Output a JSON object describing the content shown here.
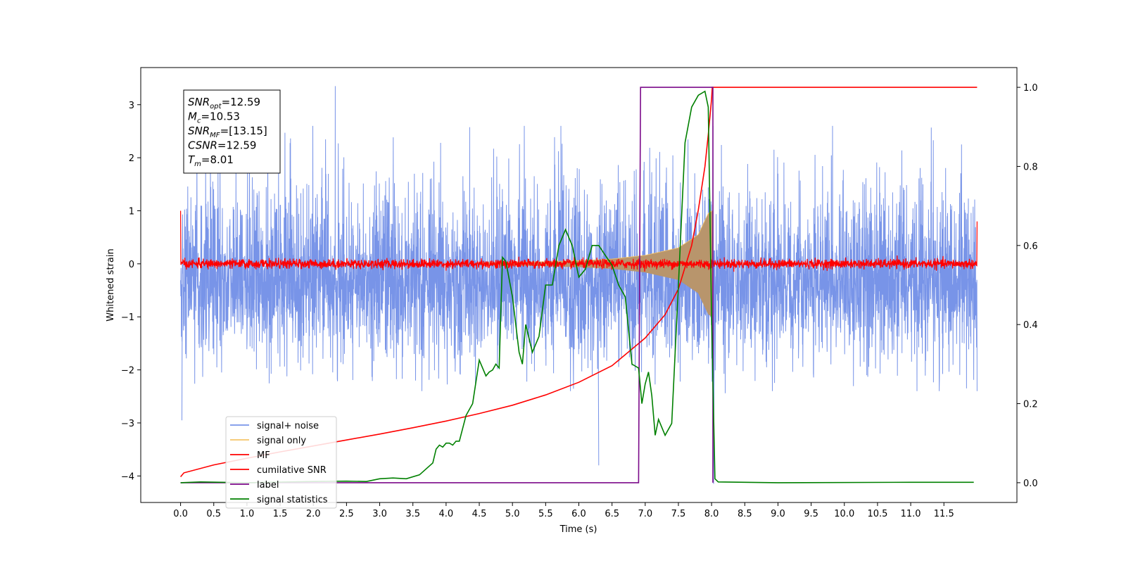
{
  "chart_data": {
    "type": "line",
    "xlabel": "Time (s)",
    "ylabel": "Whitened strain",
    "xlim": [
      -0.6,
      12.6
    ],
    "ylim": [
      -4.5,
      3.7
    ],
    "y2lim": [
      -0.05,
      1.05
    ],
    "x_ticks": [
      0.0,
      0.5,
      1.0,
      1.5,
      2.0,
      2.5,
      3.0,
      3.5,
      4.0,
      4.5,
      5.0,
      5.5,
      6.0,
      6.5,
      7.0,
      7.5,
      8.0,
      8.5,
      9.0,
      9.5,
      10.0,
      10.5,
      11.0,
      11.5
    ],
    "x_tick_labels": [
      "0.0",
      "0.5",
      "1.0",
      "1.5",
      "2.0",
      "2.5",
      "3.0",
      "3.5",
      "4.0",
      "4.5",
      "5.0",
      "5.5",
      "6.0",
      "6.5",
      "7.0",
      "7.5",
      "8.0",
      "8.5",
      "9.0",
      "9.5",
      "10.0",
      "10.5",
      "11.0",
      "11.5"
    ],
    "y_ticks": [
      -4,
      -3,
      -2,
      -1,
      0,
      1,
      2,
      3
    ],
    "y_tick_labels": [
      "−4",
      "−3",
      "−2",
      "−1",
      "0",
      "1",
      "2",
      "3"
    ],
    "y2_ticks": [
      0.0,
      0.2,
      0.4,
      0.6,
      0.8,
      1.0
    ],
    "y2_tick_labels": [
      "0.0",
      "0.2",
      "0.4",
      "0.6",
      "0.8",
      "1.0"
    ],
    "grid": false,
    "legend_position": "lower-left",
    "annotation_box": {
      "position": "top-left",
      "lines": [
        {
          "base": "SNR",
          "sub": "opt",
          "value": "=12.59"
        },
        {
          "base": "M",
          "sub": "c",
          "value": "=10.53"
        },
        {
          "base": "SNR",
          "sub": "MF",
          "value": "=[13.15]"
        },
        {
          "base": "CSNR",
          "sub": "",
          "value": "=12.59"
        },
        {
          "base": "T",
          "sub": "m",
          "value": "=8.01"
        }
      ]
    },
    "series": [
      {
        "name": "signal+ noise",
        "color": "#7894e8",
        "axis": "left",
        "kind": "noise",
        "x_range": [
          0.0,
          12.0
        ],
        "typical_amplitude": 1.3,
        "extremes": [
          {
            "x": 0.02,
            "y": -2.95
          },
          {
            "x": 2.33,
            "y": 3.35
          },
          {
            "x": 6.3,
            "y": -3.8
          },
          {
            "x": 8.03,
            "y": -4.15
          }
        ]
      },
      {
        "name": "signal only",
        "color": "#f5c46a",
        "axis": "left",
        "kind": "chirp",
        "x_range": [
          4.5,
          8.01
        ],
        "envelope": [
          [
            4.5,
            0.02
          ],
          [
            5.5,
            0.04
          ],
          [
            6.0,
            0.06
          ],
          [
            6.5,
            0.09
          ],
          [
            7.0,
            0.16
          ],
          [
            7.5,
            0.3
          ],
          [
            7.8,
            0.55
          ],
          [
            7.95,
            0.95
          ],
          [
            8.01,
            1.0
          ]
        ]
      },
      {
        "name": "MF",
        "color": "#ff0000",
        "axis": "left",
        "kind": "noise",
        "x_range": [
          0.0,
          12.0
        ],
        "typical_amplitude": 0.08,
        "edge_values": [
          {
            "x": 0.0,
            "y": 1.0
          },
          {
            "x": 12.0,
            "y": 0.8
          }
        ]
      },
      {
        "name": "cumilative SNR",
        "color": "#ff0000",
        "axis": "right",
        "x": [
          0.0,
          0.05,
          0.5,
          1.0,
          1.5,
          2.0,
          2.5,
          3.0,
          3.5,
          4.0,
          4.5,
          5.0,
          5.5,
          6.0,
          6.5,
          7.0,
          7.3,
          7.5,
          7.7,
          7.8,
          7.9,
          7.95,
          8.0,
          8.01,
          12.0
        ],
        "y": [
          0.015,
          0.025,
          0.045,
          0.062,
          0.078,
          0.093,
          0.108,
          0.123,
          0.139,
          0.156,
          0.175,
          0.196,
          0.222,
          0.254,
          0.296,
          0.366,
          0.425,
          0.49,
          0.6,
          0.69,
          0.8,
          0.88,
          0.97,
          1.0,
          1.0
        ]
      },
      {
        "name": "label",
        "color": "#7b0a8a",
        "axis": "right",
        "x": [
          0.0,
          6.9,
          6.93,
          8.0,
          8.02,
          8.02
        ],
        "y": [
          0.0,
          0.0,
          1.0,
          1.0,
          1.0,
          0.0
        ]
      },
      {
        "name": "signal statistics",
        "color": "#008000",
        "axis": "right",
        "x": [
          0.0,
          0.3,
          1.0,
          2.0,
          2.5,
          2.8,
          3.0,
          3.2,
          3.4,
          3.6,
          3.7,
          3.8,
          3.85,
          3.9,
          3.95,
          4.0,
          4.05,
          4.1,
          4.15,
          4.2,
          4.3,
          4.4,
          4.5,
          4.6,
          4.65,
          4.7,
          4.75,
          4.8,
          4.85,
          4.9,
          5.0,
          5.1,
          5.15,
          5.2,
          5.3,
          5.4,
          5.5,
          5.6,
          5.7,
          5.8,
          5.9,
          6.0,
          6.1,
          6.2,
          6.3,
          6.4,
          6.5,
          6.6,
          6.7,
          6.8,
          6.9,
          6.95,
          7.0,
          7.05,
          7.1,
          7.15,
          7.2,
          7.3,
          7.4,
          7.5,
          7.6,
          7.7,
          7.8,
          7.9,
          7.95,
          8.0,
          8.05,
          8.1,
          9.0,
          11.0,
          11.95
        ],
        "y": [
          0.0,
          0.002,
          0.0,
          0.003,
          0.004,
          0.003,
          0.01,
          0.012,
          0.01,
          0.02,
          0.035,
          0.05,
          0.085,
          0.095,
          0.09,
          0.1,
          0.1,
          0.095,
          0.105,
          0.105,
          0.17,
          0.2,
          0.31,
          0.27,
          0.28,
          0.285,
          0.3,
          0.29,
          0.57,
          0.56,
          0.47,
          0.33,
          0.3,
          0.4,
          0.33,
          0.37,
          0.5,
          0.5,
          0.6,
          0.64,
          0.6,
          0.52,
          0.54,
          0.6,
          0.6,
          0.575,
          0.55,
          0.5,
          0.47,
          0.3,
          0.29,
          0.2,
          0.25,
          0.28,
          0.22,
          0.12,
          0.16,
          0.12,
          0.15,
          0.5,
          0.86,
          0.95,
          0.98,
          0.99,
          0.95,
          0.42,
          0.01,
          0.002,
          0.0,
          0.001,
          0.001
        ]
      }
    ]
  }
}
